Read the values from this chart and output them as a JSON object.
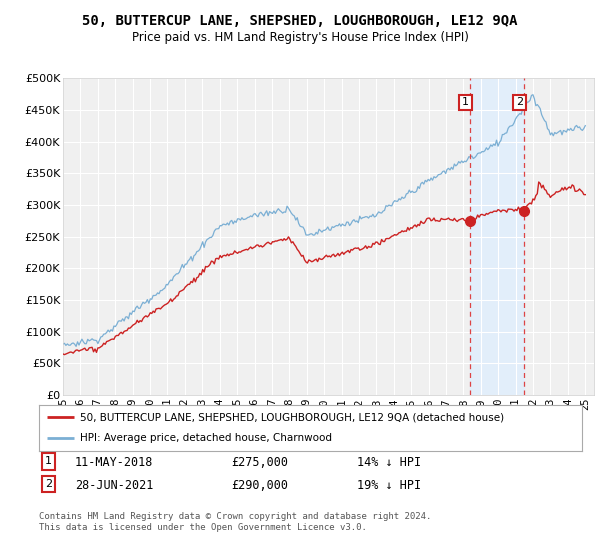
{
  "title": "50, BUTTERCUP LANE, SHEPSHED, LOUGHBOROUGH, LE12 9QA",
  "subtitle": "Price paid vs. HM Land Registry's House Price Index (HPI)",
  "ylim": [
    0,
    500000
  ],
  "yticks": [
    0,
    50000,
    100000,
    150000,
    200000,
    250000,
    300000,
    350000,
    400000,
    450000,
    500000
  ],
  "ytick_labels": [
    "£0",
    "£50K",
    "£100K",
    "£150K",
    "£200K",
    "£250K",
    "£300K",
    "£350K",
    "£400K",
    "£450K",
    "£500K"
  ],
  "background_color": "#ffffff",
  "plot_bg_color": "#f0f0f0",
  "grid_color": "#ffffff",
  "hpi_color": "#7bafd4",
  "price_color": "#cc2222",
  "marker1_date_x": 2018.36,
  "marker1_price": 275000,
  "marker1_date_str": "11-MAY-2018",
  "marker1_pct": "14% ↓ HPI",
  "marker2_date_x": 2021.49,
  "marker2_price": 290000,
  "marker2_date_str": "28-JUN-2021",
  "marker2_pct": "19% ↓ HPI",
  "legend_line1": "50, BUTTERCUP LANE, SHEPSHED, LOUGHBOROUGH, LE12 9QA (detached house)",
  "legend_line2": "HPI: Average price, detached house, Charnwood",
  "footer": "Contains HM Land Registry data © Crown copyright and database right 2024.\nThis data is licensed under the Open Government Licence v3.0.",
  "xlim": [
    1995.0,
    2025.5
  ],
  "xticks": [
    1995,
    1996,
    1997,
    1998,
    1999,
    2000,
    2001,
    2002,
    2003,
    2004,
    2005,
    2006,
    2007,
    2008,
    2009,
    2010,
    2011,
    2012,
    2013,
    2014,
    2015,
    2016,
    2017,
    2018,
    2019,
    2020,
    2021,
    2022,
    2023,
    2024,
    2025
  ],
  "xtick_labels": [
    "95",
    "96",
    "97",
    "98",
    "99",
    "00",
    "01",
    "02",
    "03",
    "04",
    "05",
    "06",
    "07",
    "08",
    "09",
    "10",
    "11",
    "12",
    "13",
    "14",
    "15",
    "16",
    "17",
    "18",
    "19",
    "20",
    "21",
    "22",
    "23",
    "24",
    "25"
  ]
}
